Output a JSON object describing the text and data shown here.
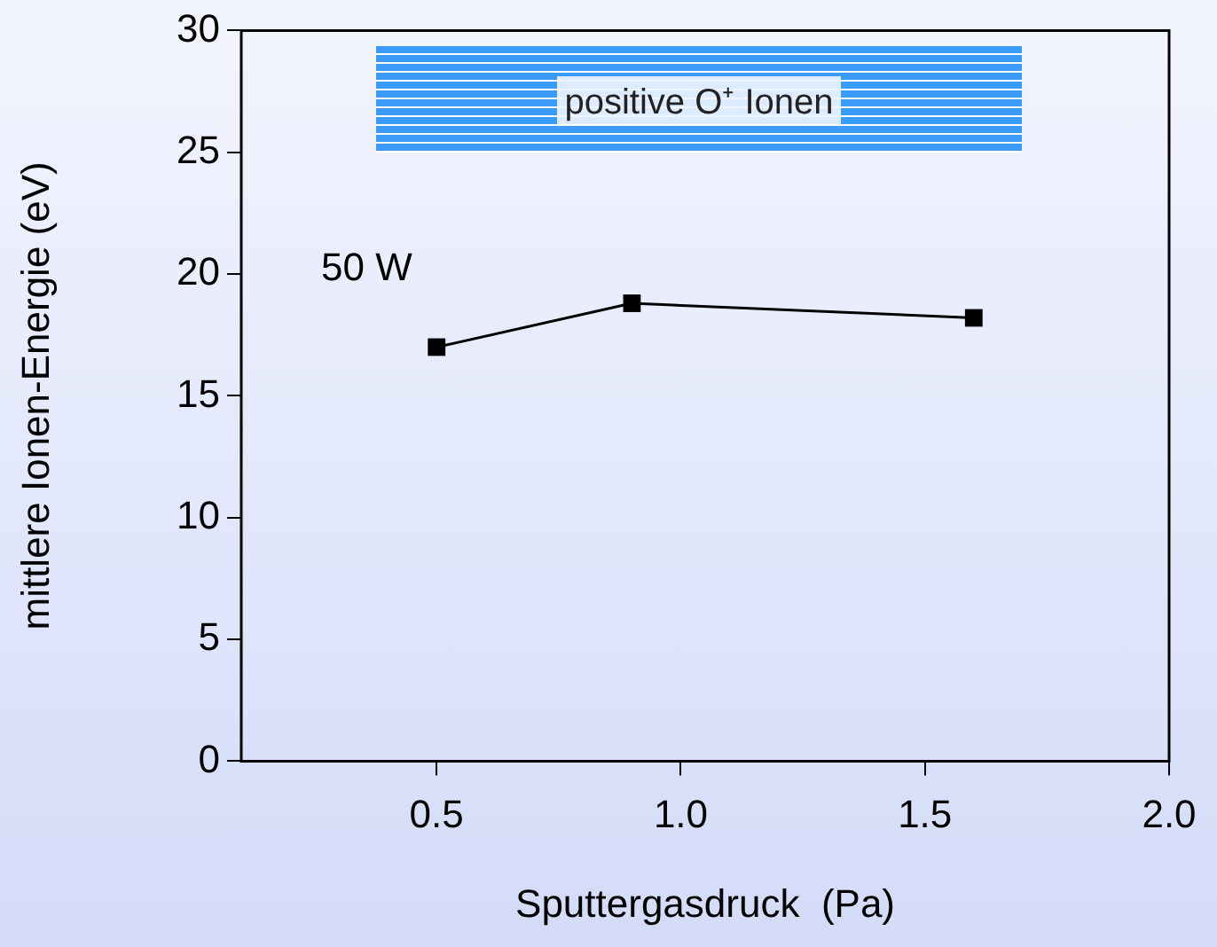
{
  "chart_data": {
    "type": "line",
    "xlabel": "Sputtergasdruck  (Pa)",
    "ylabel": "mittlere Ionen-Energie (eV)",
    "x": [
      0.5,
      0.9,
      1.6
    ],
    "series": [
      {
        "color": "#000000",
        "values": [
          17.0,
          18.8,
          18.2
        ]
      }
    ],
    "xlim": [
      0.1,
      2.0
    ],
    "xticks": [
      {
        "value": 0.5,
        "label": "0.5"
      },
      {
        "value": 1.0,
        "label": "1.0"
      },
      {
        "value": 1.5,
        "label": "1.5"
      },
      {
        "value": 2.0,
        "label": "2.0"
      }
    ],
    "ylim": [
      0,
      30
    ],
    "yticks": [
      0,
      5,
      10,
      15,
      20,
      25,
      30
    ],
    "marker": "square",
    "line_style": "solid",
    "grid": false,
    "legend": false,
    "annotations": [
      "50 W",
      "positive O⁺ Ionen"
    ]
  }
}
